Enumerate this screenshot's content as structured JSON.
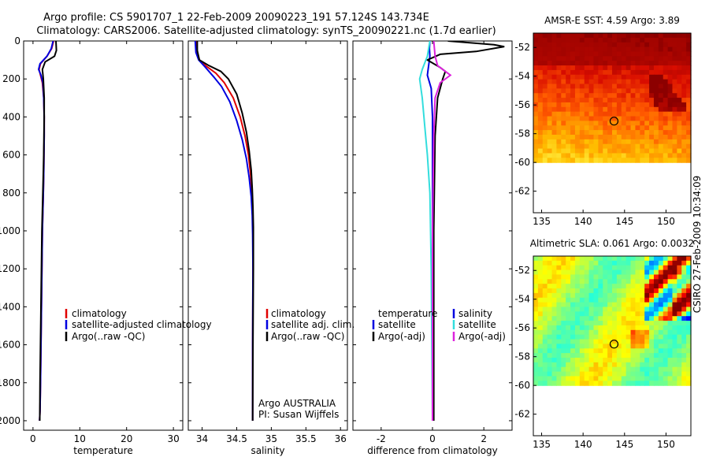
{
  "header": {
    "line1": "Argo profile: CS 5901707_1 22-Feb-2009 20090223_191 57.124S 143.734E",
    "line2": "Climatology: CARS2006. Satellite-adjusted climatology: synTS_20090221.nc (1.7d earlier)"
  },
  "side_label": "CSIRO 27-Feb-2009 10:34:09",
  "colors": {
    "red": "#e00000",
    "blue": "#0000e0",
    "black": "#000000",
    "cyan": "#33dddd",
    "magenta": "#dd22dd"
  },
  "chart_data": [
    {
      "id": "temperature",
      "type": "line",
      "xlabel": "temperature",
      "xlim": [
        -2,
        32
      ],
      "ylim": [
        0,
        2050
      ],
      "y_reversed": true,
      "xticks": [
        0,
        10,
        20,
        30
      ],
      "yticks": [
        0,
        200,
        400,
        600,
        800,
        1000,
        1200,
        1400,
        1600,
        1800,
        2000
      ],
      "legend": [
        "climatology",
        "satellite-adjusted climatology",
        "Argo(..raw -QC)"
      ],
      "series": [
        {
          "name": "climatology",
          "color": "red",
          "x": [
            4.4,
            4.0,
            3.0,
            1.6,
            1.3,
            1.6,
            2.0,
            2.3,
            2.4,
            2.4,
            2.35,
            2.3,
            2.2,
            2.1,
            2.0,
            1.9,
            1.8,
            1.7,
            1.6,
            1.5,
            1.4
          ],
          "y": [
            0,
            40,
            80,
            120,
            150,
            180,
            220,
            300,
            400,
            500,
            600,
            700,
            800,
            900,
            1000,
            1200,
            1400,
            1600,
            1800,
            1950,
            2000
          ]
        },
        {
          "name": "satellite-adjusted climatology",
          "color": "blue",
          "x": [
            4.3,
            3.9,
            3.0,
            1.5,
            1.2,
            1.7,
            2.1,
            2.3,
            2.4,
            2.4,
            2.35,
            2.3,
            2.2,
            2.1,
            2.0,
            1.9,
            1.8,
            1.7,
            1.6,
            1.5,
            1.4
          ],
          "y": [
            0,
            40,
            80,
            120,
            150,
            180,
            220,
            300,
            400,
            500,
            600,
            700,
            800,
            900,
            1000,
            1200,
            1400,
            1600,
            1800,
            1950,
            2000
          ]
        },
        {
          "name": "Argo(..raw -QC)",
          "color": "black",
          "x": [
            4.9,
            5.0,
            4.6,
            2.6,
            2.0,
            2.2,
            2.4,
            2.4,
            2.35,
            2.3,
            2.2,
            2.1,
            2.0,
            1.9,
            1.8,
            1.7,
            1.6,
            1.5,
            1.45
          ],
          "y": [
            0,
            50,
            80,
            110,
            150,
            200,
            300,
            400,
            500,
            600,
            700,
            800,
            900,
            1000,
            1200,
            1400,
            1600,
            1800,
            2000
          ]
        }
      ]
    },
    {
      "id": "salinity",
      "type": "line",
      "xlabel": "salinity",
      "xlim": [
        33.8,
        36.1
      ],
      "ylim": [
        0,
        2050
      ],
      "y_reversed": true,
      "xticks": [
        34,
        34.5,
        35,
        35.5,
        36
      ],
      "legend": [
        "climatology",
        "satellite adj. clim.",
        "Argo(..raw -QC)"
      ],
      "annotation": [
        "Argo AUSTRALIA",
        "PI: Susan Wijffels"
      ],
      "series": [
        {
          "name": "climatology",
          "color": "red",
          "x": [
            33.92,
            33.93,
            33.96,
            34.05,
            34.2,
            34.32,
            34.45,
            34.55,
            34.62,
            34.67,
            34.7,
            34.72,
            34.73,
            34.735,
            34.735,
            34.73,
            34.73
          ],
          "y": [
            0,
            60,
            100,
            130,
            170,
            220,
            300,
            400,
            500,
            600,
            700,
            800,
            900,
            1000,
            1200,
            1600,
            2000
          ]
        },
        {
          "name": "satellite adj. clim.",
          "color": "blue",
          "x": [
            33.9,
            33.91,
            33.95,
            34.05,
            34.17,
            34.28,
            34.4,
            34.5,
            34.58,
            34.64,
            34.68,
            34.71,
            34.725,
            34.73,
            34.735,
            34.73,
            34.73
          ],
          "y": [
            0,
            60,
            100,
            140,
            190,
            240,
            320,
            420,
            520,
            620,
            720,
            820,
            920,
            1020,
            1200,
            1600,
            2000
          ]
        },
        {
          "name": "Argo(..raw -QC)",
          "color": "black",
          "x": [
            33.93,
            33.93,
            33.96,
            34.1,
            34.27,
            34.38,
            34.5,
            34.58,
            34.64,
            34.68,
            34.71,
            34.725,
            34.735,
            34.74,
            34.74,
            34.735,
            34.73
          ],
          "y": [
            0,
            50,
            100,
            130,
            160,
            200,
            280,
            380,
            480,
            580,
            680,
            780,
            880,
            980,
            1200,
            1600,
            2000
          ]
        }
      ]
    },
    {
      "id": "difference",
      "type": "line",
      "xlabel": "difference from climatology",
      "xlim": [
        -3.1,
        3.1
      ],
      "ylim": [
        0,
        2050
      ],
      "y_reversed": true,
      "xticks": [
        -2,
        0,
        2
      ],
      "legend_temperature": [
        "temperature",
        "satellite",
        "Argo(-adj)"
      ],
      "legend_salinity": [
        "salinity",
        "satellite",
        "Argo(-adj)"
      ],
      "series": [
        {
          "name": "temperature satellite",
          "color": "blue",
          "x": [
            -0.1,
            -0.12,
            -0.1,
            -0.15,
            -0.2,
            -0.05,
            0.0,
            0.0,
            0.0,
            0.0,
            0.0
          ],
          "y": [
            0,
            40,
            80,
            130,
            180,
            250,
            400,
            800,
            1200,
            1600,
            2000
          ]
        },
        {
          "name": "temperature Argo(-adj)",
          "color": "black",
          "x": [
            0.6,
            2.4,
            2.8,
            1.7,
            0.3,
            -0.2,
            0.3,
            0.5,
            0.4,
            0.2,
            0.1,
            0.05,
            0.05
          ],
          "y": [
            0,
            20,
            30,
            55,
            70,
            100,
            140,
            160,
            200,
            300,
            500,
            1000,
            2000
          ]
        },
        {
          "name": "salinity satellite",
          "color": "cyan",
          "x": [
            -0.1,
            -0.2,
            -0.4,
            -0.5,
            -0.4,
            -0.3,
            -0.2,
            -0.1,
            -0.05,
            0.0
          ],
          "y": [
            0,
            80,
            150,
            200,
            300,
            450,
            600,
            800,
            1200,
            2000
          ]
        },
        {
          "name": "salinity Argo(-adj)",
          "color": "magenta",
          "x": [
            0.05,
            0.1,
            0.2,
            0.5,
            0.7,
            0.3,
            0.1,
            0.05,
            0.0,
            0.0
          ],
          "y": [
            0,
            80,
            130,
            160,
            180,
            220,
            300,
            500,
            1000,
            2000
          ]
        }
      ]
    },
    {
      "id": "sst_map",
      "type": "heatmap",
      "title": "AMSR-E SST: 4.59 Argo: 3.89",
      "xlim": [
        134,
        153
      ],
      "ylim": [
        -63.5,
        -51
      ],
      "xticks": [
        135,
        140,
        145,
        150
      ],
      "yticks": [
        -52,
        -54,
        -56,
        -58,
        -60,
        -62
      ],
      "data_ylim": [
        -60,
        -51
      ],
      "marker": {
        "lon": 143.734,
        "lat": -57.124
      }
    },
    {
      "id": "sla_map",
      "type": "heatmap",
      "title": "Altimetric SLA: 0.061 Argo: 0.0032",
      "xlim": [
        134,
        153
      ],
      "ylim": [
        -63.5,
        -51
      ],
      "xticks": [
        135,
        140,
        145,
        150
      ],
      "yticks": [
        -52,
        -54,
        -56,
        -58,
        -60,
        -62
      ],
      "data_ylim": [
        -60,
        -51
      ],
      "marker": {
        "lon": 143.734,
        "lat": -57.124
      }
    }
  ]
}
